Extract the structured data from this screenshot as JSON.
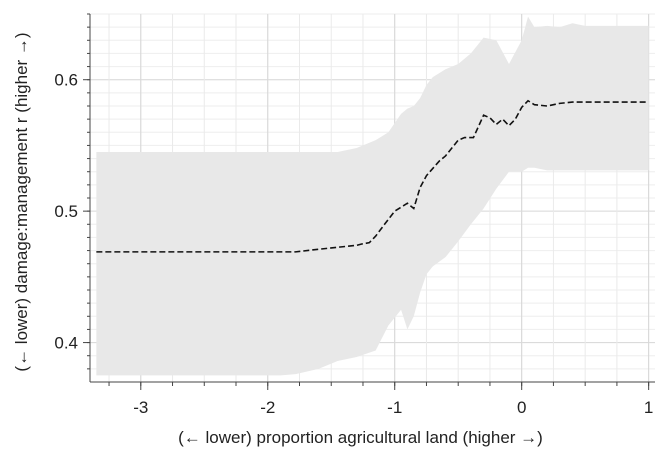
{
  "chart_data": {
    "type": "line",
    "xlabel": "(← lower) proportion agricultural land (higher →)",
    "ylabel": "(← lower) damage:management r (higher →)",
    "xlim": [
      -3.4,
      1.05
    ],
    "ylim": [
      0.37,
      0.65
    ],
    "x_ticks": [
      -3,
      -2,
      -1,
      0,
      1
    ],
    "x_tick_labels": [
      "-3",
      "-2",
      "-1",
      "0",
      "1"
    ],
    "y_ticks": [
      0.4,
      0.5,
      0.6
    ],
    "y_tick_labels": [
      "0.4",
      "0.5",
      "0.6"
    ],
    "grid": true,
    "band_color": "#e8e8e8",
    "line_color": "#111111",
    "series": [
      {
        "style": "dashed",
        "x": [
          -3.35,
          -2.6,
          -2.0,
          -1.78,
          -1.6,
          -1.5,
          -1.4,
          -1.3,
          -1.26,
          -1.2,
          -1.15,
          -1.08,
          -1.0,
          -0.9,
          -0.85,
          -0.8,
          -0.75,
          -0.65,
          -0.6,
          -0.5,
          -0.45,
          -0.38,
          -0.3,
          -0.25,
          -0.2,
          -0.15,
          -0.1,
          -0.05,
          0.0,
          0.05,
          0.1,
          0.2,
          0.3,
          0.4,
          0.5,
          0.7,
          1.0
        ],
        "y": [
          0.469,
          0.469,
          0.469,
          0.469,
          0.471,
          0.472,
          0.473,
          0.474,
          0.475,
          0.476,
          0.481,
          0.49,
          0.5,
          0.506,
          0.502,
          0.518,
          0.527,
          0.538,
          0.542,
          0.554,
          0.556,
          0.556,
          0.573,
          0.571,
          0.566,
          0.57,
          0.565,
          0.57,
          0.579,
          0.584,
          0.581,
          0.58,
          0.582,
          0.583,
          0.583,
          0.583,
          0.583
        ]
      }
    ],
    "band": {
      "x": [
        -3.35,
        -2.6,
        -2.0,
        -1.9,
        -1.78,
        -1.6,
        -1.45,
        -1.3,
        -1.15,
        -1.05,
        -0.95,
        -0.9,
        -0.85,
        -0.8,
        -0.75,
        -0.7,
        -0.6,
        -0.5,
        -0.4,
        -0.3,
        -0.2,
        -0.1,
        0.0,
        0.05,
        0.1,
        0.2,
        0.3,
        0.4,
        0.5,
        0.7,
        1.0
      ],
      "upper": [
        0.545,
        0.545,
        0.545,
        0.545,
        0.545,
        0.545,
        0.545,
        0.548,
        0.554,
        0.56,
        0.574,
        0.578,
        0.58,
        0.586,
        0.596,
        0.602,
        0.608,
        0.612,
        0.62,
        0.632,
        0.63,
        0.612,
        0.63,
        0.648,
        0.64,
        0.641,
        0.64,
        0.643,
        0.641,
        0.641,
        0.641
      ],
      "lower": [
        0.375,
        0.375,
        0.375,
        0.375,
        0.376,
        0.38,
        0.386,
        0.389,
        0.394,
        0.413,
        0.425,
        0.41,
        0.42,
        0.438,
        0.452,
        0.458,
        0.465,
        0.477,
        0.49,
        0.502,
        0.517,
        0.53,
        0.53,
        0.533,
        0.533,
        0.531,
        0.531,
        0.531,
        0.531,
        0.531,
        0.531
      ]
    }
  }
}
